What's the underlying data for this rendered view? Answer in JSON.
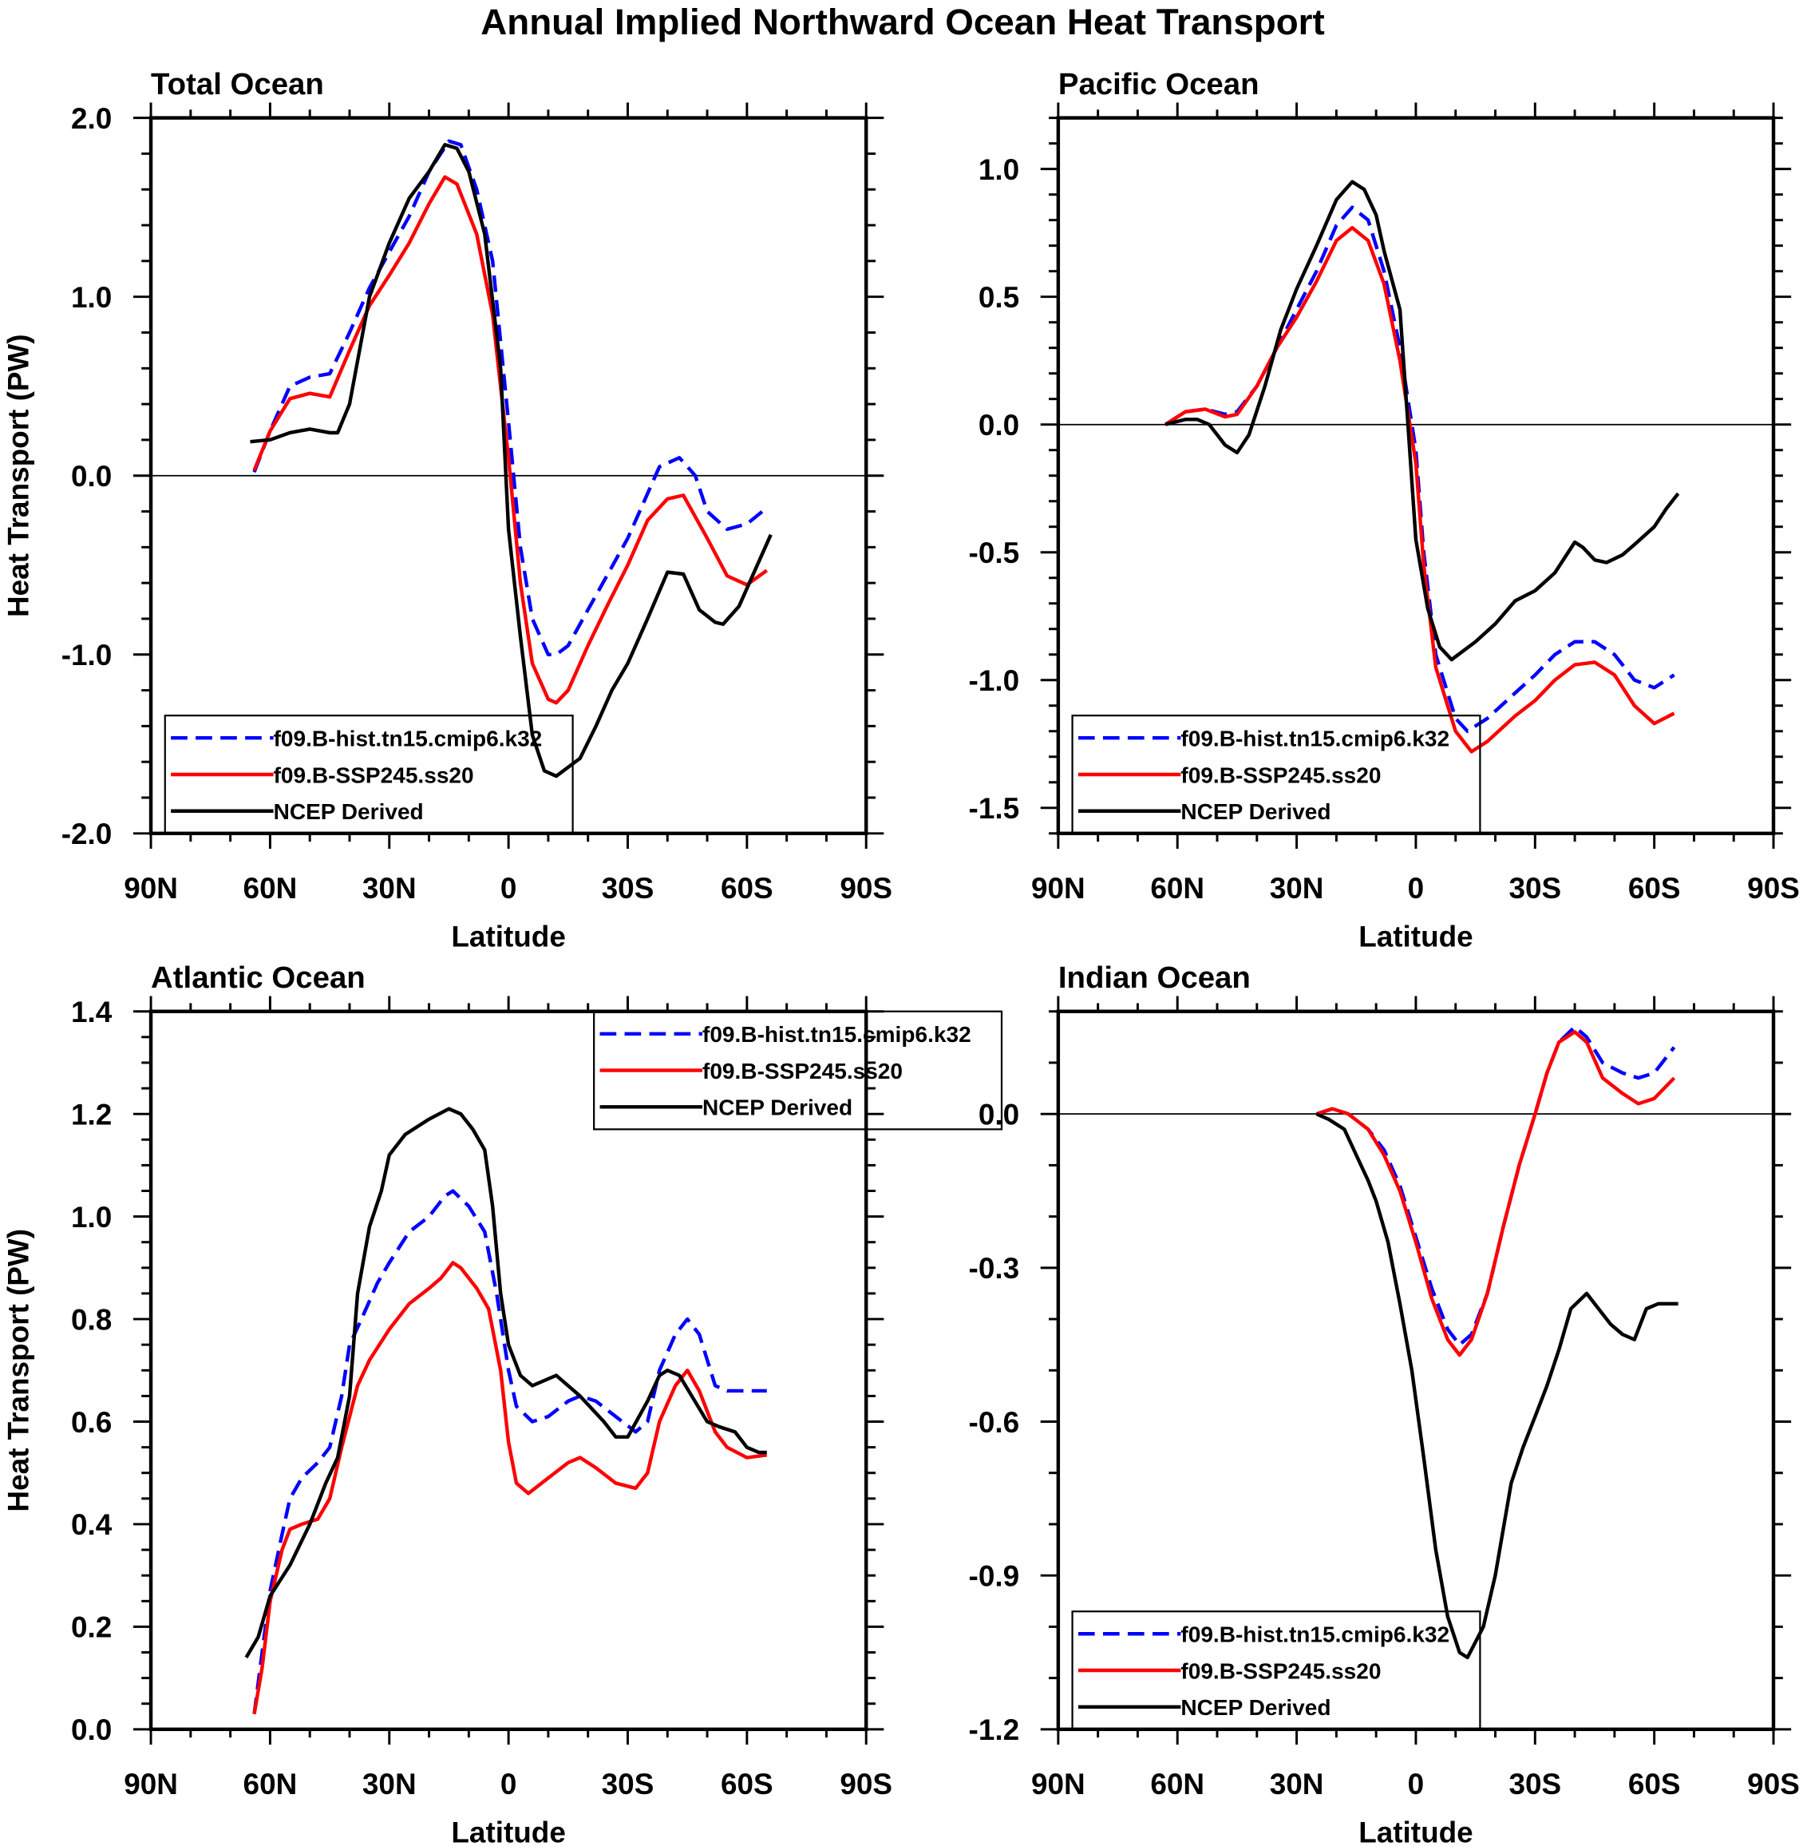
{
  "title": "Annual Implied Northward Ocean Heat Transport",
  "colors": {
    "hist": "#0000ff",
    "ssp": "#ff0000",
    "ncep": "#000000"
  },
  "chart_data": [
    {
      "type": "line",
      "title": "Total Ocean",
      "xlabel": "Latitude",
      "ylabel": "Heat Transport (PW)",
      "xlim": [
        90,
        -90
      ],
      "ylim": [
        -2.0,
        2.0
      ],
      "xticks": [
        90,
        60,
        30,
        0,
        -30,
        -60,
        -90
      ],
      "xtick_labels": [
        "90N",
        "60N",
        "30N",
        "0",
        "30S",
        "60S",
        "90S"
      ],
      "yticks": [
        2.0,
        1.0,
        0.0,
        -1.0,
        -2.0
      ],
      "ytick_labels": [
        "2.0",
        "1.0",
        "0.0",
        "-1.0",
        "-2.0"
      ],
      "yminor": 0.2,
      "zero_line": true,
      "legend_placement": "bottom-left",
      "series": [
        {
          "name": "f09.B-hist.tn15.cmip6.k32",
          "style": "dashed",
          "color": "#0000ff",
          "x": [
            64,
            60,
            55,
            50,
            45,
            40,
            35,
            30,
            25,
            20,
            15,
            12,
            8,
            4,
            0,
            -3,
            -6,
            -10,
            -12,
            -15,
            -20,
            -25,
            -30,
            -35,
            -38,
            -43,
            -47,
            -50,
            -55,
            -60,
            -65
          ],
          "y": [
            0.02,
            0.25,
            0.5,
            0.55,
            0.57,
            0.8,
            1.05,
            1.25,
            1.45,
            1.7,
            1.87,
            1.85,
            1.6,
            1.2,
            0.3,
            -0.4,
            -0.8,
            -1.0,
            -1.0,
            -0.95,
            -0.75,
            -0.55,
            -0.35,
            -0.1,
            0.05,
            0.1,
            0.0,
            -0.2,
            -0.3,
            -0.27,
            -0.18
          ]
        },
        {
          "name": "f09.B-SSP245.ss20",
          "style": "solid",
          "color": "#ff0000",
          "x": [
            64,
            60,
            55,
            50,
            45,
            40,
            35,
            30,
            25,
            20,
            16,
            13,
            8,
            4,
            0,
            -3,
            -6,
            -10,
            -12,
            -15,
            -20,
            -25,
            -30,
            -35,
            -40,
            -44,
            -50,
            -55,
            -60,
            -65
          ],
          "y": [
            0.03,
            0.25,
            0.43,
            0.46,
            0.44,
            0.7,
            0.95,
            1.12,
            1.3,
            1.52,
            1.67,
            1.63,
            1.35,
            0.9,
            0.1,
            -0.6,
            -1.05,
            -1.25,
            -1.27,
            -1.2,
            -0.95,
            -0.72,
            -0.5,
            -0.25,
            -0.13,
            -0.11,
            -0.35,
            -0.56,
            -0.61,
            -0.53
          ]
        },
        {
          "name": "NCEP Derived",
          "style": "solid",
          "color": "#000000",
          "x": [
            65,
            60,
            55,
            50,
            45,
            43,
            40,
            35,
            30,
            25,
            20,
            16,
            13,
            10,
            6,
            2,
            0,
            -3,
            -6,
            -9,
            -12,
            -18,
            -22,
            -26,
            -30,
            -35,
            -40,
            -44,
            -48,
            -52,
            -54,
            -58,
            -62,
            -66
          ],
          "y": [
            0.19,
            0.2,
            0.24,
            0.26,
            0.24,
            0.24,
            0.4,
            1.0,
            1.3,
            1.55,
            1.7,
            1.85,
            1.83,
            1.7,
            1.35,
            0.6,
            -0.3,
            -0.9,
            -1.45,
            -1.65,
            -1.68,
            -1.58,
            -1.4,
            -1.2,
            -1.05,
            -0.8,
            -0.54,
            -0.55,
            -0.75,
            -0.82,
            -0.83,
            -0.73,
            -0.53,
            -0.33
          ]
        }
      ]
    },
    {
      "type": "line",
      "title": "Pacific Ocean",
      "xlabel": "Latitude",
      "ylabel": "",
      "xlim": [
        90,
        -90
      ],
      "ylim": [
        -1.6,
        1.2
      ],
      "xticks": [
        90,
        60,
        30,
        0,
        -30,
        -60,
        -90
      ],
      "xtick_labels": [
        "90N",
        "60N",
        "30N",
        "0",
        "30S",
        "60S",
        "90S"
      ],
      "yticks": [
        1.0,
        0.5,
        0.0,
        -0.5,
        -1.0,
        -1.5
      ],
      "ytick_labels": [
        "1.0",
        "0.5",
        "0.0",
        "-0.5",
        "-1.0",
        "-1.5"
      ],
      "yminor": 0.1,
      "zero_line": true,
      "legend_placement": "bottom-left",
      "series": [
        {
          "name": "f09.B-hist.tn15.cmip6.k32",
          "style": "dashed",
          "color": "#0000ff",
          "x": [
            63,
            58,
            53,
            48,
            45,
            40,
            35,
            30,
            25,
            20,
            16,
            12,
            8,
            4,
            0,
            -2,
            -5,
            -10,
            -13,
            -18,
            -25,
            -30,
            -35,
            -40,
            -45,
            -50,
            -55,
            -60,
            -65
          ],
          "y": [
            0.0,
            0.05,
            0.06,
            0.04,
            0.05,
            0.15,
            0.3,
            0.45,
            0.6,
            0.78,
            0.85,
            0.8,
            0.6,
            0.3,
            -0.1,
            -0.5,
            -0.9,
            -1.15,
            -1.2,
            -1.15,
            -1.05,
            -0.98,
            -0.9,
            -0.85,
            -0.85,
            -0.9,
            -1.0,
            -1.03,
            -0.98
          ]
        },
        {
          "name": "f09.B-SSP245.ss20",
          "style": "solid",
          "color": "#ff0000",
          "x": [
            63,
            58,
            53,
            48,
            45,
            40,
            35,
            30,
            25,
            20,
            16,
            12,
            8,
            4,
            0,
            -2,
            -5,
            -10,
            -14,
            -18,
            -25,
            -30,
            -35,
            -40,
            -45,
            -50,
            -55,
            -60,
            -65
          ],
          "y": [
            0.0,
            0.05,
            0.06,
            0.03,
            0.04,
            0.15,
            0.3,
            0.42,
            0.56,
            0.72,
            0.77,
            0.72,
            0.55,
            0.25,
            -0.15,
            -0.55,
            -0.95,
            -1.2,
            -1.28,
            -1.24,
            -1.14,
            -1.08,
            -1.0,
            -0.94,
            -0.93,
            -0.98,
            -1.1,
            -1.17,
            -1.13
          ]
        },
        {
          "name": "NCEP Derived",
          "style": "solid",
          "color": "#000000",
          "x": [
            63,
            58,
            55,
            52,
            48,
            45,
            42,
            38,
            34,
            30,
            25,
            20,
            16,
            13,
            10,
            8,
            4,
            2,
            0,
            -3,
            -6,
            -9,
            -15,
            -20,
            -25,
            -30,
            -35,
            -40,
            -42,
            -45,
            -48,
            -52,
            -55,
            -60,
            -63,
            -66
          ],
          "y": [
            0.0,
            0.02,
            0.02,
            0.0,
            -0.08,
            -0.11,
            -0.04,
            0.15,
            0.37,
            0.53,
            0.7,
            0.88,
            0.95,
            0.92,
            0.82,
            0.68,
            0.45,
            0.0,
            -0.45,
            -0.72,
            -0.87,
            -0.92,
            -0.85,
            -0.78,
            -0.69,
            -0.65,
            -0.58,
            -0.46,
            -0.48,
            -0.53,
            -0.54,
            -0.51,
            -0.47,
            -0.4,
            -0.33,
            -0.27
          ]
        }
      ]
    },
    {
      "type": "line",
      "title": "Atlantic Ocean",
      "xlabel": "Latitude",
      "ylabel": "Heat Transport (PW)",
      "xlim": [
        90,
        -90
      ],
      "ylim": [
        0.0,
        1.4
      ],
      "xticks": [
        90,
        60,
        30,
        0,
        -30,
        -60,
        -90
      ],
      "xtick_labels": [
        "90N",
        "60N",
        "30N",
        "0",
        "30S",
        "60S",
        "90S"
      ],
      "yticks": [
        1.4,
        1.2,
        1.0,
        0.8,
        0.6,
        0.4,
        0.2,
        0.0
      ],
      "ytick_labels": [
        "1.4",
        "1.2",
        "1.0",
        "0.8",
        "0.6",
        "0.4",
        "0.2",
        "0.0"
      ],
      "yminor": 0.05,
      "zero_line": false,
      "legend_placement": "top-right",
      "series": [
        {
          "name": "f09.B-hist.tn15.cmip6.k32",
          "style": "dashed",
          "color": "#0000ff",
          "x": [
            64,
            62,
            60,
            57,
            55,
            52,
            48,
            45,
            42,
            40,
            37,
            33,
            30,
            25,
            20,
            16,
            14,
            10,
            6,
            3,
            0,
            -2,
            -6,
            -10,
            -15,
            -18,
            -22,
            -27,
            -32,
            -35,
            -38,
            -42,
            -45,
            -48,
            -52,
            -55,
            -60,
            -65
          ],
          "y": [
            0.03,
            0.15,
            0.27,
            0.38,
            0.45,
            0.49,
            0.52,
            0.55,
            0.65,
            0.75,
            0.8,
            0.87,
            0.91,
            0.97,
            1.0,
            1.04,
            1.05,
            1.02,
            0.97,
            0.85,
            0.7,
            0.63,
            0.6,
            0.61,
            0.64,
            0.65,
            0.64,
            0.61,
            0.58,
            0.6,
            0.7,
            0.77,
            0.8,
            0.77,
            0.67,
            0.66,
            0.66,
            0.66
          ]
        },
        {
          "name": "f09.B-SSP245.ss20",
          "style": "solid",
          "color": "#ff0000",
          "x": [
            64,
            62,
            60,
            57,
            55,
            52,
            48,
            45,
            42,
            38,
            35,
            30,
            25,
            20,
            17,
            14,
            12,
            8,
            5,
            2,
            0,
            -2,
            -5,
            -10,
            -15,
            -18,
            -22,
            -27,
            -32,
            -35,
            -38,
            -42,
            -45,
            -48,
            -52,
            -55,
            -60,
            -65
          ],
          "y": [
            0.03,
            0.12,
            0.25,
            0.35,
            0.39,
            0.4,
            0.41,
            0.45,
            0.55,
            0.67,
            0.72,
            0.78,
            0.83,
            0.86,
            0.88,
            0.91,
            0.9,
            0.86,
            0.82,
            0.7,
            0.56,
            0.48,
            0.46,
            0.49,
            0.52,
            0.53,
            0.51,
            0.48,
            0.47,
            0.5,
            0.6,
            0.67,
            0.7,
            0.66,
            0.58,
            0.55,
            0.53,
            0.535
          ]
        },
        {
          "name": "NCEP Derived",
          "style": "solid",
          "color": "#000000",
          "x": [
            66,
            63,
            60,
            55,
            50,
            46,
            43,
            40,
            38,
            35,
            32,
            30,
            26,
            20,
            15,
            12,
            9,
            6,
            4,
            2,
            0,
            -3,
            -6,
            -12,
            -18,
            -24,
            -27,
            -30,
            -35,
            -38,
            -40,
            -43,
            -50,
            -53,
            -57,
            -60,
            -63,
            -65
          ],
          "y": [
            0.14,
            0.18,
            0.26,
            0.32,
            0.4,
            0.48,
            0.53,
            0.65,
            0.85,
            0.98,
            1.05,
            1.12,
            1.16,
            1.19,
            1.21,
            1.2,
            1.17,
            1.13,
            1.02,
            0.85,
            0.75,
            0.69,
            0.67,
            0.69,
            0.65,
            0.6,
            0.57,
            0.57,
            0.64,
            0.69,
            0.7,
            0.69,
            0.6,
            0.59,
            0.58,
            0.55,
            0.54,
            0.54
          ]
        }
      ]
    },
    {
      "type": "line",
      "title": "Indian Ocean",
      "xlabel": "Latitude",
      "ylabel": "",
      "xlim": [
        90,
        -90
      ],
      "ylim": [
        -1.2,
        0.2
      ],
      "xticks": [
        90,
        60,
        30,
        0,
        -30,
        -60,
        -90
      ],
      "xtick_labels": [
        "90N",
        "60N",
        "30N",
        "0",
        "30S",
        "60S",
        "90S"
      ],
      "yticks": [
        0.0,
        -0.3,
        -0.6,
        -0.9,
        -1.2
      ],
      "ytick_labels": [
        "0.0",
        "-0.3",
        "-0.6",
        "-0.9",
        "-1.2"
      ],
      "yminor": 0.1,
      "zero_line": true,
      "legend_placement": "bottom-left",
      "series": [
        {
          "name": "f09.B-hist.tn15.cmip6.k32",
          "style": "dashed",
          "color": "#0000ff",
          "x": [
            25,
            21,
            17,
            12,
            8,
            4,
            0,
            -4,
            -8,
            -11,
            -14,
            -18,
            -22,
            -26,
            -30,
            -33,
            -36,
            -40,
            -43,
            -47,
            -52,
            -56,
            -60,
            -65
          ],
          "y": [
            0.0,
            0.01,
            0.0,
            -0.03,
            -0.07,
            -0.14,
            -0.24,
            -0.34,
            -0.42,
            -0.45,
            -0.43,
            -0.35,
            -0.22,
            -0.1,
            0.0,
            0.08,
            0.14,
            0.17,
            0.15,
            0.1,
            0.08,
            0.07,
            0.08,
            0.13
          ]
        },
        {
          "name": "f09.B-SSP245.ss20",
          "style": "solid",
          "color": "#ff0000",
          "x": [
            25,
            21,
            17,
            12,
            8,
            4,
            0,
            -4,
            -8,
            -11,
            -14,
            -18,
            -22,
            -26,
            -30,
            -33,
            -36,
            -40,
            -43,
            -47,
            -52,
            -56,
            -60,
            -65
          ],
          "y": [
            0.0,
            0.01,
            0.0,
            -0.03,
            -0.08,
            -0.15,
            -0.25,
            -0.36,
            -0.44,
            -0.47,
            -0.44,
            -0.35,
            -0.22,
            -0.1,
            0.0,
            0.08,
            0.14,
            0.16,
            0.14,
            0.07,
            0.04,
            0.02,
            0.03,
            0.07
          ]
        },
        {
          "name": "NCEP Derived",
          "style": "solid",
          "color": "#000000",
          "x": [
            25,
            22,
            18,
            15,
            12,
            10,
            7,
            4,
            1,
            -2,
            -5,
            -8,
            -11,
            -13,
            -17,
            -20,
            -24,
            -27,
            -30,
            -33,
            -36,
            -39,
            -43,
            -46,
            -49,
            -52,
            -55,
            -58,
            -61,
            -66
          ],
          "y": [
            0.0,
            -0.01,
            -0.03,
            -0.08,
            -0.13,
            -0.17,
            -0.25,
            -0.37,
            -0.5,
            -0.67,
            -0.85,
            -0.98,
            -1.05,
            -1.06,
            -1.0,
            -0.9,
            -0.72,
            -0.65,
            -0.59,
            -0.53,
            -0.46,
            -0.38,
            -0.35,
            -0.38,
            -0.41,
            -0.43,
            -0.44,
            -0.38,
            -0.37,
            -0.37
          ]
        }
      ]
    }
  ]
}
